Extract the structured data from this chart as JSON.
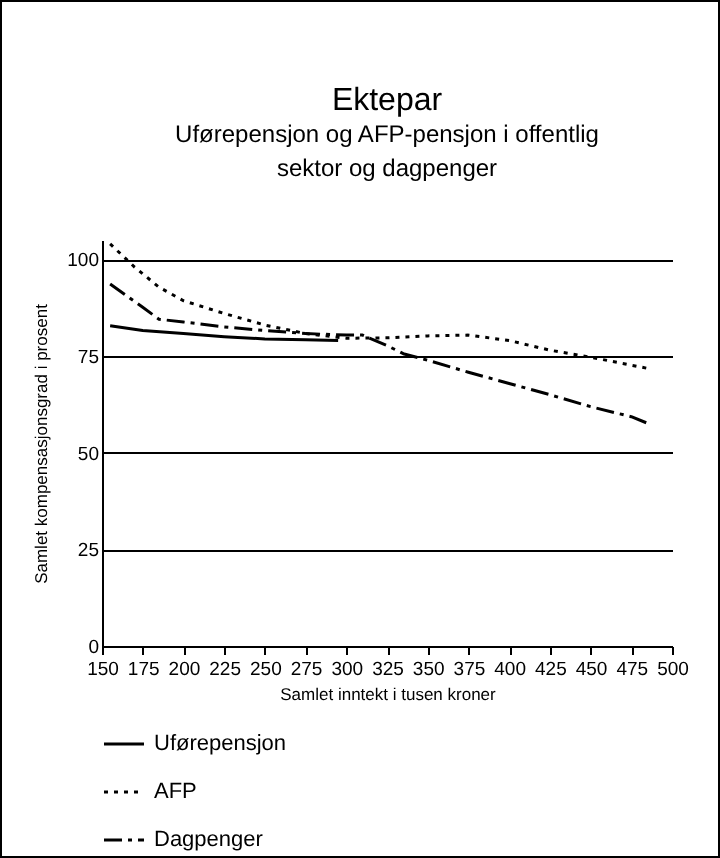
{
  "chart_data": {
    "type": "line",
    "title": "Ektepar",
    "subtitle": "Uførepensjon og AFP-pensjon i offentlig sektor og dagpenger",
    "xlabel": "Samlet inntekt i tusen kroner",
    "ylabel": "Samlet kompensasjonsgrad i prosent",
    "xlim": [
      150,
      500
    ],
    "xticks": [
      150,
      175,
      200,
      225,
      250,
      275,
      300,
      325,
      350,
      375,
      400,
      425,
      450,
      475,
      500
    ],
    "ylim": [
      0,
      105
    ],
    "yticks": [
      0,
      25,
      50,
      75,
      100
    ],
    "grid": "y",
    "legend": "bottom",
    "series": [
      {
        "name": "Uførepensjon",
        "color": "#000000",
        "line_style": "solid",
        "x": [
          155,
          175,
          200,
          225,
          250,
          275,
          295
        ],
        "values": [
          82.8,
          81.6,
          80.8,
          80,
          79.4,
          79.2,
          79
        ]
      },
      {
        "name": "AFP",
        "color": "#000000",
        "line_style": "dotted",
        "x": [
          155,
          170,
          185,
          200,
          225,
          250,
          275,
          300,
          325,
          350,
          375,
          400,
          425,
          450,
          485
        ],
        "values": [
          104,
          98,
          92.8,
          89.3,
          86,
          83,
          80.8,
          79.6,
          79.7,
          80.2,
          80.4,
          79,
          76.5,
          74.7,
          71.8
        ]
      },
      {
        "name": "Dagpenger",
        "color": "#000000",
        "line_style": "dashed",
        "x": [
          155,
          175,
          185,
          200,
          225,
          250,
          275,
          300,
          310,
          325,
          335,
          350,
          375,
          400,
          425,
          450,
          475,
          485
        ],
        "values": [
          93.6,
          87.6,
          84.5,
          83.8,
          82.5,
          81.6,
          80.8,
          80.4,
          80.4,
          77.7,
          75.6,
          73.9,
          70.8,
          67.9,
          65,
          61.9,
          59.3,
          57.6
        ]
      }
    ]
  }
}
